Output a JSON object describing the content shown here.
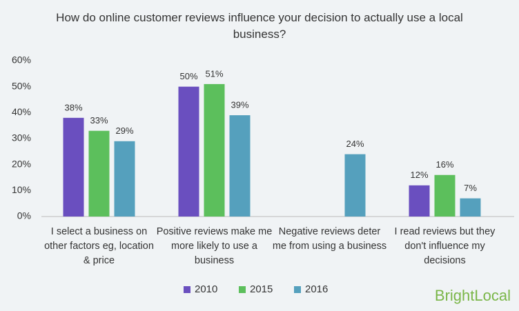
{
  "chart_data": {
    "type": "bar",
    "title": "How do online customer reviews influence your decision to actually use a local business?",
    "categories": [
      "I select a business on other factors eg, location & price",
      "Positive reviews make me more likely to use a business",
      "Negative reviews deter me from using a business",
      "I read reviews but they don't influence my decisions"
    ],
    "series": [
      {
        "name": "2010",
        "color": "#6a4fbf",
        "values": [
          38,
          50,
          null,
          12
        ],
        "value_labels": [
          "38%",
          "50%",
          null,
          "12%"
        ]
      },
      {
        "name": "2015",
        "color": "#5cbf5c",
        "values": [
          33,
          51,
          null,
          16
        ],
        "value_labels": [
          "33%",
          "51%",
          null,
          "16%"
        ]
      },
      {
        "name": "2016",
        "color": "#55a0bd",
        "values": [
          29,
          39,
          24,
          7
        ],
        "value_labels": [
          "29%",
          "39%",
          "24%",
          "7%"
        ]
      }
    ],
    "ylim": [
      0,
      60
    ],
    "yticks": [
      {
        "value": 0,
        "label": "0%"
      },
      {
        "value": 10,
        "label": "10%"
      },
      {
        "value": 20,
        "label": "20%"
      },
      {
        "value": 30,
        "label": "30%"
      },
      {
        "value": 40,
        "label": "40%"
      },
      {
        "value": 50,
        "label": "50%"
      },
      {
        "value": 60,
        "label": "60%"
      }
    ],
    "grid": false,
    "legend": "bottom",
    "brand": "BrightLocal"
  }
}
